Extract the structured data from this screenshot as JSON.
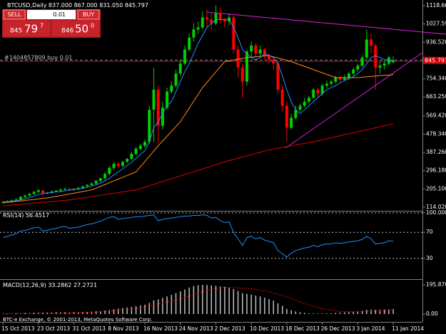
{
  "chart_data": [
    {
      "type": "candlestick",
      "title": "BTCUSD,Daily",
      "ohlc_labels": [
        "837.000",
        "867.000",
        "831.050",
        "845.797"
      ],
      "categories": [
        "15 Oct 2013",
        null,
        null,
        null,
        null,
        null,
        null,
        null,
        "23 Oct 2013",
        null,
        null,
        null,
        null,
        null,
        null,
        null,
        "31 Oct 2013",
        null,
        null,
        null,
        null,
        null,
        null,
        null,
        "8 Nov 2013",
        null,
        null,
        null,
        null,
        null,
        null,
        null,
        "16 Nov 2013",
        null,
        null,
        null,
        null,
        null,
        null,
        null,
        "24 Nov 2013",
        null,
        null,
        null,
        null,
        null,
        null,
        null,
        "2 Dec 2013",
        null,
        null,
        null,
        null,
        null,
        null,
        null,
        "10 Dec 2013",
        null,
        null,
        null,
        null,
        null,
        null,
        null,
        "18 Dec 2013",
        null,
        null,
        null,
        null,
        null,
        null,
        null,
        "26 Dec 2013",
        null,
        null,
        null,
        null,
        null,
        null,
        null,
        "3 Jan 2014",
        null,
        null,
        null,
        null,
        null,
        null,
        null,
        "11 Jan 2014"
      ],
      "open": [
        138,
        140,
        143,
        148,
        152,
        165,
        172,
        180,
        190,
        198,
        182,
        185,
        192,
        196,
        202,
        206,
        200,
        205,
        210,
        218,
        225,
        232,
        245,
        258,
        280,
        310,
        330,
        320,
        340,
        355,
        380,
        405,
        420,
        440,
        600,
        700,
        520,
        610,
        690,
        720,
        780,
        830,
        900,
        960,
        1000,
        1010,
        1060,
        1050,
        1030,
        1080,
        1050,
        1040,
        1060,
        900,
        810,
        740,
        890,
        920,
        880,
        900,
        870,
        850,
        830,
        700,
        620,
        510,
        560,
        600,
        620,
        640,
        660,
        700,
        680,
        720,
        730,
        740,
        760,
        750,
        760,
        780,
        800,
        820,
        860,
        950,
        920,
        810,
        820,
        830,
        837
      ],
      "high": [
        145,
        148,
        152,
        158,
        170,
        178,
        186,
        195,
        205,
        200,
        190,
        198,
        200,
        208,
        212,
        210,
        210,
        215,
        222,
        230,
        238,
        250,
        262,
        290,
        320,
        340,
        340,
        345,
        360,
        390,
        415,
        430,
        450,
        620,
        810,
        720,
        640,
        710,
        740,
        800,
        850,
        920,
        980,
        1030,
        1040,
        1090,
        1100,
        1080,
        1120,
        1110,
        1060,
        1080,
        1070,
        920,
        830,
        900,
        940,
        930,
        920,
        910,
        880,
        860,
        840,
        720,
        640,
        580,
        620,
        630,
        660,
        670,
        710,
        710,
        730,
        745,
        750,
        770,
        770,
        775,
        790,
        810,
        830,
        870,
        1000,
        980,
        930,
        840,
        845,
        870,
        867
      ],
      "low": [
        134,
        137,
        140,
        145,
        150,
        160,
        168,
        176,
        185,
        175,
        178,
        182,
        188,
        192,
        198,
        195,
        196,
        200,
        205,
        215,
        220,
        228,
        240,
        250,
        272,
        300,
        310,
        315,
        335,
        350,
        372,
        395,
        410,
        430,
        440,
        430,
        500,
        600,
        680,
        710,
        770,
        820,
        890,
        940,
        980,
        1000,
        1010,
        1000,
        1020,
        1030,
        1010,
        1020,
        880,
        760,
        660,
        720,
        860,
        860,
        860,
        850,
        830,
        800,
        680,
        590,
        440,
        500,
        550,
        590,
        610,
        630,
        650,
        660,
        670,
        710,
        720,
        730,
        740,
        745,
        750,
        770,
        790,
        810,
        850,
        880,
        700,
        780,
        800,
        820,
        831.05
      ],
      "close": [
        140,
        143,
        148,
        152,
        165,
        172,
        180,
        190,
        198,
        182,
        185,
        192,
        196,
        202,
        206,
        200,
        205,
        210,
        218,
        225,
        232,
        245,
        258,
        280,
        310,
        330,
        320,
        340,
        355,
        380,
        405,
        420,
        440,
        600,
        700,
        520,
        610,
        690,
        720,
        780,
        830,
        900,
        960,
        1000,
        1010,
        1060,
        1050,
        1030,
        1080,
        1050,
        1040,
        1060,
        900,
        810,
        740,
        890,
        920,
        880,
        900,
        870,
        850,
        830,
        700,
        620,
        510,
        560,
        600,
        620,
        640,
        660,
        700,
        680,
        720,
        730,
        740,
        760,
        750,
        760,
        780,
        800,
        820,
        860,
        950,
        920,
        810,
        820,
        830,
        860,
        845.797
      ],
      "up_color": "#00d000",
      "down_color": "#ff0000",
      "series": [
        {
          "color": "#ff8c1a",
          "values": [
            135,
            138,
            140,
            143,
            145,
            148,
            150,
            153,
            155,
            158,
            160,
            164,
            168,
            172,
            176,
            180,
            184,
            188,
            192,
            196,
            200,
            209,
            218,
            227,
            236,
            245,
            254,
            263,
            272,
            281,
            290,
            316,
            342,
            368,
            394,
            420,
            444,
            468,
            492,
            516,
            540,
            574,
            608,
            642,
            676,
            710,
            736,
            762,
            788,
            814,
            840,
            844,
            848,
            852,
            856,
            860,
            862,
            864,
            866,
            868,
            870,
            864,
            858,
            852,
            846,
            840,
            832,
            824,
            816,
            808,
            800,
            792,
            784,
            776,
            768,
            760,
            760,
            760,
            760,
            760,
            760,
            762,
            764,
            766,
            768,
            770,
            772,
            773,
            775
          ]
        },
        {
          "color": "#e00000",
          "values": [
            120,
            122,
            124,
            126,
            128,
            130,
            132,
            134,
            136,
            138,
            140,
            142,
            144,
            146,
            148,
            150,
            153,
            157,
            160,
            163,
            167,
            170,
            173,
            177,
            180,
            183,
            187,
            190,
            193,
            197,
            200,
            207,
            214,
            221,
            228,
            235,
            242,
            249,
            256,
            263,
            270,
            277,
            284,
            291,
            298,
            305,
            312,
            319,
            326,
            333,
            340,
            346,
            352,
            358,
            364,
            370,
            376,
            382,
            388,
            394,
            400,
            404,
            408,
            412,
            416,
            420,
            424,
            428,
            432,
            436,
            440,
            445,
            450,
            455,
            460,
            465,
            470,
            475,
            480,
            485,
            490,
            495,
            500,
            505,
            510,
            515,
            520,
            525,
            530
          ]
        },
        {
          "color": "#1e90ff",
          "values": [
            140,
            142,
            144,
            147,
            150,
            156,
            162,
            169,
            177,
            182,
            185,
            188,
            190,
            192,
            196,
            199,
            202,
            205,
            208,
            213,
            220,
            226,
            234,
            245,
            258,
            275,
            290,
            305,
            322,
            338,
            357,
            378,
            395,
            440,
            510,
            540,
            580,
            620,
            640,
            690,
            740,
            790,
            830,
            880,
            930,
            970,
            1010,
            1030,
            1050,
            1050,
            1050,
            1050,
            1010,
            960,
            900,
            880,
            860,
            850,
            860,
            880,
            870,
            860,
            830,
            770,
            700,
            640,
            600,
            580,
            600,
            620,
            640,
            660,
            680,
            700,
            710,
            720,
            735,
            745,
            755,
            765,
            780,
            800,
            830,
            860,
            870,
            860,
            850,
            845,
            845
          ]
        }
      ],
      "ylim": [
        96,
        1147
      ],
      "yticks": [
        {
          "value": 1118.66,
          "label": "1118.660"
        },
        {
          "value": 1027.59,
          "label": "1027.590"
        },
        {
          "value": 936.52,
          "label": "936.520"
        },
        {
          "value": 845.45,
          "label": "845.450"
        },
        {
          "value": 754.34,
          "label": "754.340"
        },
        {
          "value": 663.25,
          "label": "663.250"
        },
        {
          "value": 569.42,
          "label": "569.420"
        },
        {
          "value": 478.34,
          "label": "478.340"
        },
        {
          "value": 387.26,
          "label": "387.260"
        },
        {
          "value": 296.18,
          "label": "296.180"
        },
        {
          "value": 205.1,
          "label": "205.100"
        },
        {
          "value": 114.02,
          "label": "114.020"
        }
      ],
      "grid": false
    },
    {
      "type": "line",
      "title": "RSI(14)",
      "series": [
        {
          "color": "#1e90ff",
          "values": [
            62,
            64,
            66,
            68,
            72,
            73,
            75,
            77,
            78,
            72,
            73,
            75,
            76,
            78,
            79,
            76,
            77,
            78,
            80,
            82,
            83,
            85,
            87,
            90,
            93,
            94,
            90,
            91,
            92,
            93,
            94,
            94,
            95,
            96,
            97,
            88,
            90,
            91,
            92,
            93,
            94,
            95,
            95,
            96,
            96,
            97,
            96,
            92,
            93,
            88,
            85,
            86,
            70,
            60,
            50,
            62,
            64,
            60,
            62,
            58,
            56,
            54,
            42,
            37,
            32,
            38,
            42,
            44,
            46,
            47,
            50,
            48,
            51,
            52,
            52,
            54,
            53,
            54,
            55,
            56,
            57,
            59,
            64,
            60,
            52,
            53,
            54,
            57,
            56.4517
          ]
        }
      ],
      "ylim": [
        -2,
        102
      ],
      "yticks": [
        {
          "value": 100,
          "label": "100.000"
        },
        70,
        30
      ],
      "grid": true
    },
    {
      "type": "bar",
      "title": "MACD(12,26,9)",
      "color": "#c0c0c0",
      "values": [
        2,
        3,
        4,
        5,
        6,
        7,
        8,
        9,
        10,
        10,
        10,
        11,
        11,
        12,
        12,
        12,
        12,
        13,
        14,
        15,
        16,
        18,
        20,
        23,
        27,
        32,
        36,
        40,
        44,
        48,
        53,
        58,
        63,
        75,
        92,
        98,
        108,
        118,
        128,
        140,
        152,
        165,
        178,
        188,
        194,
        196,
        195,
        192,
        190,
        186,
        182,
        178,
        168,
        155,
        140,
        135,
        130,
        124,
        118,
        110,
        100,
        90,
        72,
        55,
        35,
        25,
        18,
        12,
        8,
        5,
        4,
        3,
        4,
        5,
        6,
        8,
        10,
        12,
        14,
        16,
        18,
        22,
        28,
        30,
        28,
        29,
        30,
        32,
        33.2862
      ],
      "signal": {
        "color": "#ff0000",
        "values": [
          1,
          2,
          2,
          3,
          3,
          4,
          4,
          5,
          5,
          6,
          6,
          7,
          8,
          8,
          9,
          9,
          10,
          10,
          11,
          11,
          12,
          14,
          17,
          19,
          21,
          24,
          26,
          28,
          31,
          33,
          35,
          42,
          48,
          55,
          61,
          68,
          74,
          81,
          87,
          94,
          100,
          110,
          120,
          130,
          140,
          150,
          160,
          165,
          170,
          175,
          180,
          178,
          177,
          175,
          173,
          172,
          170,
          165,
          160,
          155,
          150,
          141,
          133,
          124,
          115,
          104,
          93,
          81,
          70,
          61,
          53,
          44,
          35,
          31,
          27,
          22,
          18,
          17,
          16,
          15,
          14,
          16,
          17,
          19,
          20,
          22,
          24,
          26,
          27.2721
        ]
      },
      "ylim": [
        -52.6,
        224.6
      ],
      "yticks": [
        195.8782,
        {
          "value": 0,
          "label": "0.00"
        }
      ],
      "grid": false
    }
  ],
  "trade_panel": {
    "sell": "SELL",
    "buy": "BUY",
    "lot": "0.01",
    "bid": [
      "845",
      "79",
      "7"
    ],
    "ask": [
      "846",
      "50",
      "0"
    ]
  },
  "order_label": "#1404857809 buy 0.01",
  "footer": "BTC-e Exchange, © 2001-2013, MetaQuotes Software Corp."
}
